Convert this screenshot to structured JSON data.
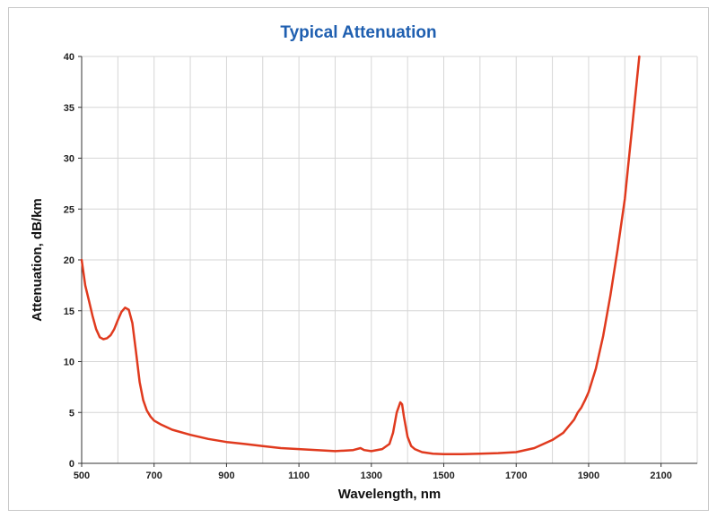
{
  "chart_data": {
    "type": "line",
    "title": "Typical Attenuation",
    "xlabel": "Wavelength, nm",
    "ylabel": "Attenuation, dB/km",
    "xlim": [
      500,
      2200
    ],
    "ylim": [
      0,
      40
    ],
    "xticks": [
      500,
      700,
      900,
      1100,
      1300,
      1500,
      1700,
      1900,
      2100
    ],
    "yticks": [
      0,
      5,
      10,
      15,
      20,
      25,
      30,
      35,
      40
    ],
    "grid": true,
    "line_color": "#e03a1e",
    "series": [
      {
        "x": [
          500,
          510,
          520,
          530,
          540,
          550,
          560,
          570,
          580,
          590,
          600,
          610,
          620,
          630,
          640,
          650,
          660,
          670,
          680,
          690,
          700,
          720,
          750,
          800,
          850,
          900,
          950,
          1000,
          1050,
          1100,
          1150,
          1200,
          1250,
          1270,
          1280,
          1300,
          1330,
          1350,
          1360,
          1370,
          1380,
          1385,
          1390,
          1400,
          1410,
          1420,
          1440,
          1470,
          1500,
          1550,
          1600,
          1650,
          1700,
          1750,
          1800,
          1830,
          1860,
          1870,
          1880,
          1890,
          1900,
          1920,
          1940,
          1960,
          1980,
          2000,
          2010,
          2020,
          2030,
          2040
        ],
        "y": [
          20,
          17.5,
          16,
          14.5,
          13.2,
          12.4,
          12.2,
          12.3,
          12.6,
          13.2,
          14.1,
          14.9,
          15.3,
          15.1,
          13.8,
          11.0,
          8.0,
          6.2,
          5.2,
          4.6,
          4.2,
          3.8,
          3.3,
          2.8,
          2.4,
          2.1,
          1.9,
          1.7,
          1.5,
          1.4,
          1.3,
          1.2,
          1.3,
          1.5,
          1.3,
          1.2,
          1.4,
          1.9,
          3.0,
          5.0,
          6.0,
          5.8,
          4.6,
          2.6,
          1.7,
          1.4,
          1.1,
          0.95,
          0.9,
          0.9,
          0.95,
          1.0,
          1.1,
          1.5,
          2.3,
          3.0,
          4.3,
          5.0,
          5.5,
          6.2,
          7.0,
          9.3,
          12.5,
          16.5,
          21.0,
          26.0,
          29.5,
          33.0,
          36.5,
          40.0
        ]
      }
    ]
  }
}
